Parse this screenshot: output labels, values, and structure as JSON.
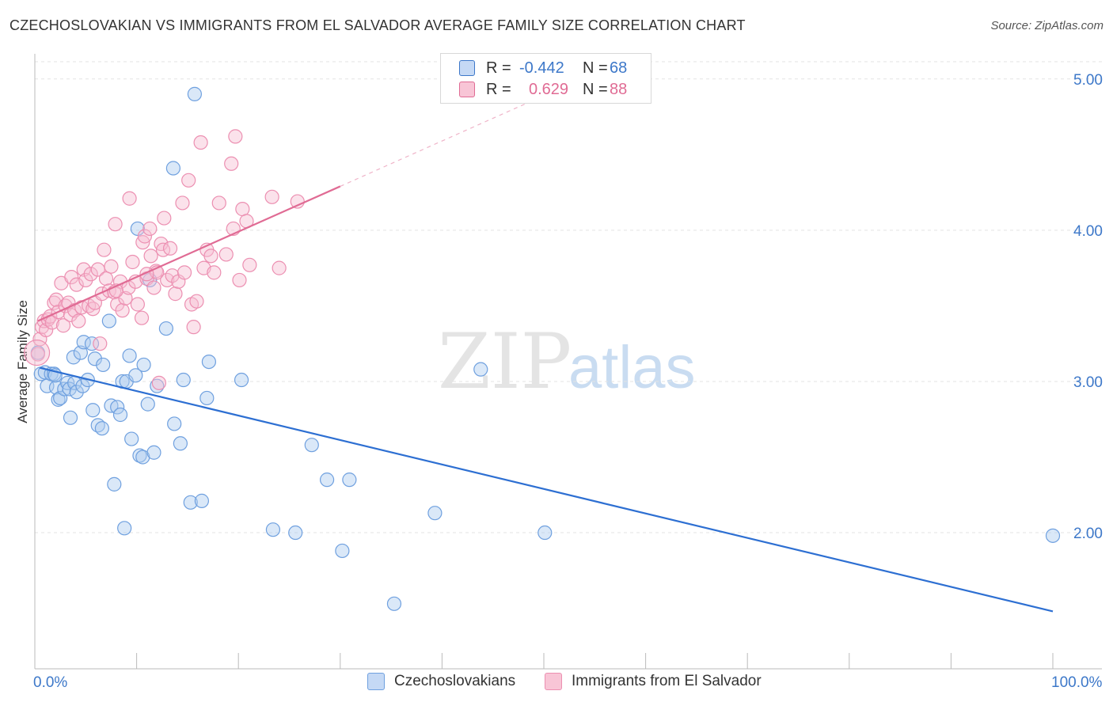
{
  "header": {
    "title": "CZECHOSLOVAKIAN VS IMMIGRANTS FROM EL SALVADOR AVERAGE FAMILY SIZE CORRELATION CHART",
    "source": "Source: ZipAtlas.com"
  },
  "watermark": {
    "zip": "ZIP",
    "atlas": "atlas"
  },
  "legend_top": {
    "rows": [
      {
        "r_label": "R =",
        "r_value": "-0.442",
        "n_label": "N =",
        "n_value": "68",
        "color": "#3d78c9",
        "fill": "#c5d9f5"
      },
      {
        "r_label": "R =",
        "r_value": "0.629",
        "n_label": "N =",
        "n_value": "88",
        "color": "#e06b94",
        "fill": "#f8c5d6"
      }
    ]
  },
  "legend_bottom": {
    "items": [
      {
        "label": "Czechoslovakians",
        "color": "#6fa0df",
        "fill": "#c5d9f5"
      },
      {
        "label": "Immigrants from El Salvador",
        "color": "#ec8fb1",
        "fill": "#f8c5d6"
      }
    ]
  },
  "chart_data": {
    "type": "scatter",
    "title": "CZECHOSLOVAKIAN VS IMMIGRANTS FROM EL SALVADOR AVERAGE FAMILY SIZE CORRELATION CHART",
    "xlabel": "",
    "ylabel": "Average Family Size",
    "xlim": [
      0,
      100
    ],
    "ylim": [
      1.1,
      5.25
    ],
    "x_tick_labels": [
      "0.0%",
      "100.0%"
    ],
    "y_ticks": [
      2.0,
      3.0,
      4.0,
      5.0
    ],
    "y_tick_labels": [
      "2.00",
      "3.00",
      "4.00",
      "5.00"
    ],
    "grid": true,
    "series": [
      {
        "name": "Czechoslovakians",
        "color": "#6fa0df",
        "fill": "rgba(173,204,240,0.45)",
        "line_color": "#2d6fd2",
        "trend": {
          "x": [
            0.5,
            100
          ],
          "y": [
            3.09,
            1.48
          ]
        },
        "points": [
          [
            0.3,
            3.19
          ],
          [
            0.6,
            3.05
          ],
          [
            1.0,
            3.06
          ],
          [
            1.2,
            2.97
          ],
          [
            1.6,
            3.05
          ],
          [
            1.9,
            3.05
          ],
          [
            2.1,
            2.96
          ],
          [
            2.3,
            2.88
          ],
          [
            2.5,
            2.89
          ],
          [
            2.9,
            2.95
          ],
          [
            3.2,
            2.99
          ],
          [
            3.4,
            2.95
          ],
          [
            3.5,
            2.76
          ],
          [
            3.8,
            3.16
          ],
          [
            3.9,
            2.99
          ],
          [
            4.1,
            2.93
          ],
          [
            4.5,
            3.19
          ],
          [
            4.7,
            2.97
          ],
          [
            4.8,
            3.26
          ],
          [
            5.2,
            3.01
          ],
          [
            5.6,
            3.25
          ],
          [
            5.7,
            2.81
          ],
          [
            5.9,
            3.15
          ],
          [
            6.2,
            2.71
          ],
          [
            6.6,
            2.69
          ],
          [
            6.7,
            3.11
          ],
          [
            7.3,
            3.4
          ],
          [
            7.5,
            2.84
          ],
          [
            7.8,
            2.32
          ],
          [
            8.1,
            2.83
          ],
          [
            8.4,
            2.78
          ],
          [
            8.6,
            3.0
          ],
          [
            8.8,
            2.03
          ],
          [
            9.0,
            3.0
          ],
          [
            9.3,
            3.17
          ],
          [
            9.5,
            2.62
          ],
          [
            9.9,
            3.04
          ],
          [
            10.1,
            4.01
          ],
          [
            10.3,
            2.51
          ],
          [
            10.6,
            2.5
          ],
          [
            10.7,
            3.11
          ],
          [
            11.1,
            2.85
          ],
          [
            11.3,
            3.67
          ],
          [
            11.7,
            2.53
          ],
          [
            12.0,
            2.97
          ],
          [
            12.9,
            3.35
          ],
          [
            13.6,
            4.41
          ],
          [
            13.7,
            2.72
          ],
          [
            14.3,
            2.59
          ],
          [
            14.6,
            3.01
          ],
          [
            15.3,
            2.2
          ],
          [
            15.7,
            4.9
          ],
          [
            16.4,
            2.21
          ],
          [
            16.9,
            2.89
          ],
          [
            17.1,
            3.13
          ],
          [
            20.3,
            3.01
          ],
          [
            23.4,
            2.02
          ],
          [
            25.6,
            2.0
          ],
          [
            27.2,
            2.58
          ],
          [
            28.7,
            2.35
          ],
          [
            30.2,
            1.88
          ],
          [
            30.9,
            2.35
          ],
          [
            35.3,
            1.53
          ],
          [
            39.3,
            2.13
          ],
          [
            43.8,
            3.08
          ],
          [
            50.1,
            2.0
          ],
          [
            100.0,
            1.98
          ],
          [
            2.0,
            3.04
          ]
        ]
      },
      {
        "name": "Immigrants from El Salvador",
        "color": "#ec8fb1",
        "fill": "rgba(246,190,210,0.45)",
        "line_color": "#e06b94",
        "trend": {
          "x": [
            0.3,
            30.0
          ],
          "y": [
            3.4,
            4.29
          ]
        },
        "trend_dash": {
          "x": [
            30.0,
            52.0
          ],
          "y": [
            4.29,
            4.95
          ]
        },
        "points": [
          [
            0.3,
            3.18
          ],
          [
            0.5,
            3.28
          ],
          [
            0.7,
            3.36
          ],
          [
            0.9,
            3.4
          ],
          [
            1.1,
            3.34
          ],
          [
            1.3,
            3.41
          ],
          [
            1.5,
            3.43
          ],
          [
            1.7,
            3.39
          ],
          [
            1.9,
            3.52
          ],
          [
            2.1,
            3.54
          ],
          [
            2.3,
            3.46
          ],
          [
            2.6,
            3.65
          ],
          [
            2.8,
            3.37
          ],
          [
            3.0,
            3.5
          ],
          [
            3.3,
            3.52
          ],
          [
            3.5,
            3.44
          ],
          [
            3.6,
            3.69
          ],
          [
            3.9,
            3.47
          ],
          [
            4.1,
            3.64
          ],
          [
            4.3,
            3.4
          ],
          [
            4.6,
            3.49
          ],
          [
            4.8,
            3.74
          ],
          [
            5.0,
            3.67
          ],
          [
            5.3,
            3.5
          ],
          [
            5.5,
            3.71
          ],
          [
            5.7,
            3.48
          ],
          [
            5.9,
            3.52
          ],
          [
            6.2,
            3.74
          ],
          [
            6.4,
            3.25
          ],
          [
            6.6,
            3.58
          ],
          [
            6.8,
            3.87
          ],
          [
            7.0,
            3.68
          ],
          [
            7.3,
            3.6
          ],
          [
            7.5,
            3.76
          ],
          [
            7.8,
            3.59
          ],
          [
            7.9,
            4.04
          ],
          [
            8.1,
            3.51
          ],
          [
            8.4,
            3.66
          ],
          [
            8.6,
            3.47
          ],
          [
            8.9,
            3.55
          ],
          [
            9.2,
            3.62
          ],
          [
            9.3,
            4.21
          ],
          [
            9.6,
            3.79
          ],
          [
            9.9,
            3.66
          ],
          [
            10.1,
            3.51
          ],
          [
            10.5,
            3.42
          ],
          [
            10.6,
            3.92
          ],
          [
            10.8,
            3.96
          ],
          [
            11.0,
            3.68
          ],
          [
            11.3,
            4.01
          ],
          [
            11.4,
            3.83
          ],
          [
            11.7,
            3.62
          ],
          [
            11.9,
            3.73
          ],
          [
            12.0,
            3.72
          ],
          [
            12.2,
            2.99
          ],
          [
            12.4,
            3.91
          ],
          [
            12.6,
            3.87
          ],
          [
            12.7,
            4.08
          ],
          [
            13.0,
            3.67
          ],
          [
            13.3,
            3.88
          ],
          [
            13.5,
            3.7
          ],
          [
            13.8,
            3.58
          ],
          [
            14.1,
            3.66
          ],
          [
            14.5,
            4.18
          ],
          [
            14.7,
            3.72
          ],
          [
            15.1,
            4.33
          ],
          [
            15.4,
            3.51
          ],
          [
            15.6,
            3.36
          ],
          [
            15.9,
            3.53
          ],
          [
            16.3,
            4.58
          ],
          [
            16.6,
            3.75
          ],
          [
            16.9,
            3.87
          ],
          [
            17.3,
            3.83
          ],
          [
            17.6,
            3.72
          ],
          [
            18.1,
            4.18
          ],
          [
            18.8,
            3.84
          ],
          [
            19.3,
            4.44
          ],
          [
            19.5,
            4.01
          ],
          [
            19.7,
            4.62
          ],
          [
            20.1,
            3.67
          ],
          [
            20.4,
            4.14
          ],
          [
            20.8,
            4.06
          ],
          [
            21.1,
            3.77
          ],
          [
            23.3,
            4.22
          ],
          [
            24.0,
            3.75
          ],
          [
            25.8,
            4.19
          ],
          [
            11.0,
            3.71
          ],
          [
            8.0,
            3.6
          ]
        ]
      }
    ]
  }
}
